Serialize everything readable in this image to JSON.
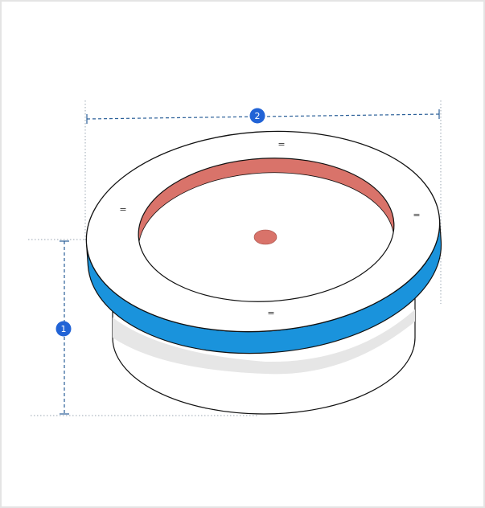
{
  "dimensions": [
    {
      "label": "1"
    },
    {
      "label": "2"
    }
  ],
  "equal_marks": [
    "=",
    "=",
    "=",
    "="
  ]
}
